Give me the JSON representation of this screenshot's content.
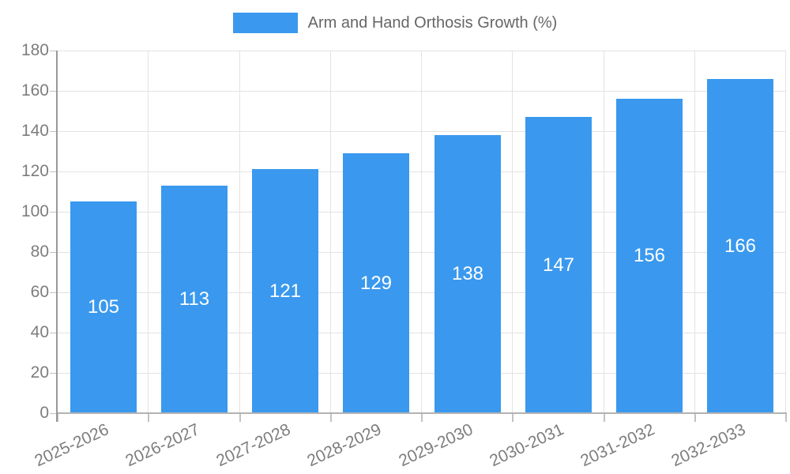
{
  "chart_data": {
    "type": "bar",
    "title": "Arm and Hand Orthosis Growth (%)",
    "categories": [
      "2025-2026",
      "2026-2027",
      "2027-2028",
      "2028-2029",
      "2029-2030",
      "2030-2031",
      "2031-2032",
      "2032-2033"
    ],
    "values": [
      105,
      113,
      121,
      129,
      138,
      147,
      156,
      166
    ],
    "xlabel": "",
    "ylabel": "",
    "ylim": [
      0,
      180
    ],
    "y_ticks": [
      0,
      20,
      40,
      60,
      80,
      100,
      120,
      140,
      160,
      180
    ],
    "grid": true,
    "legend_position": "top-center",
    "value_label_placement": "centered-in-bar",
    "x_tick_rotation_deg": -25,
    "colors": {
      "bar": "#3a99ee",
      "legend_text": "#666666",
      "axis_text": "#7d7d7d",
      "value_label_text": "#ffffff",
      "gridline": "#e3e3e3",
      "axis_line": "#999999",
      "baseline": "#b3b3b3",
      "tick_mark": "#c2c2c2",
      "background": "#ffffff"
    }
  }
}
